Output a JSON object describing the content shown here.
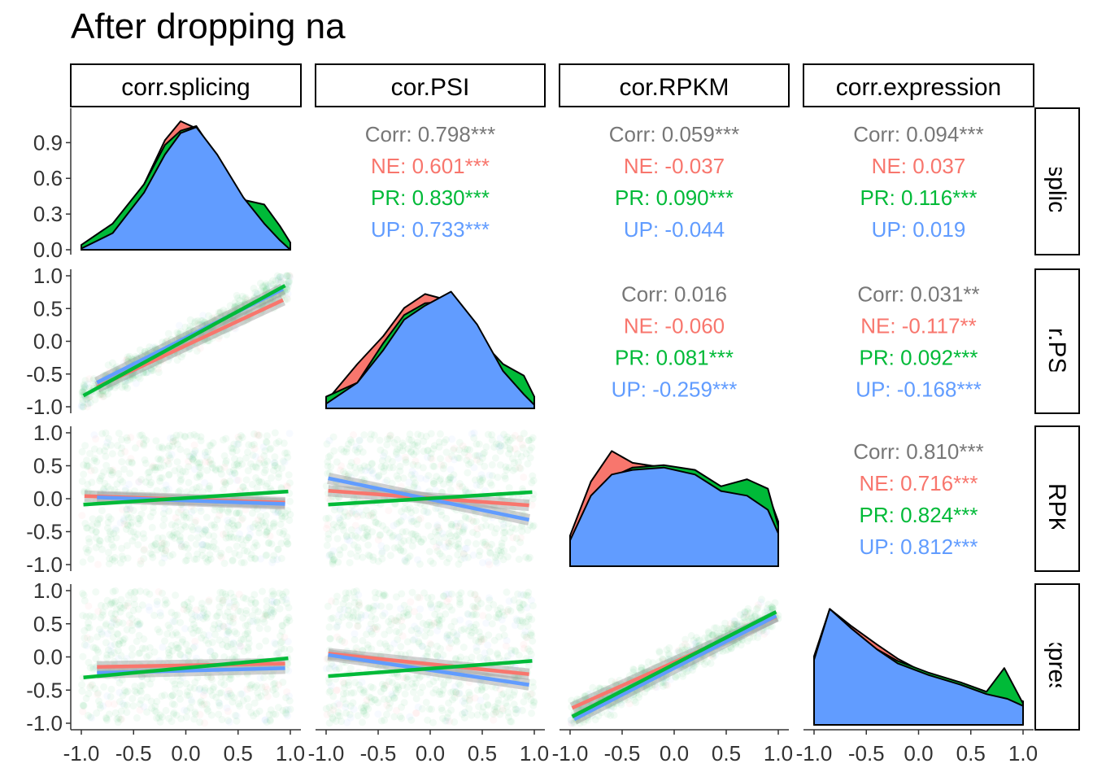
{
  "title": "After dropping na",
  "colors": {
    "NE": "#F8766D",
    "PR": "#00BA38",
    "UP": "#619CFF",
    "corr": "#777777"
  },
  "chart_data": {
    "type": "scatter",
    "chart_kind": "ggpairs scatterplot matrix",
    "variables": [
      "corr.splicing",
      "cor.PSI",
      "cor.RPKM",
      "corr.expression"
    ],
    "groups": [
      "NE",
      "PR",
      "UP"
    ],
    "axis": {
      "xlim": [
        -1.0,
        1.0
      ],
      "ylim": [
        -1.0,
        1.0
      ],
      "x_ticks": [
        "-1.0",
        "-0.5",
        "0.0",
        "0.5",
        "1.0"
      ],
      "y_ticks": [
        "-1.0",
        "-0.5",
        "0.0",
        "0.5",
        "1.0"
      ],
      "density_y_ticks": [
        "0.0",
        "0.3",
        "0.6",
        "0.9"
      ],
      "density_ylim": [
        0,
        1.08
      ],
      "grid": false
    },
    "correlations": [
      {
        "row": "corr.splicing",
        "col": "cor.PSI",
        "lines": [
          {
            "key": "Corr",
            "text": "Corr: 0.798***"
          },
          {
            "key": "NE",
            "text": "NE: 0.601***"
          },
          {
            "key": "PR",
            "text": "PR: 0.830***"
          },
          {
            "key": "UP",
            "text": "UP: 0.733***"
          }
        ]
      },
      {
        "row": "corr.splicing",
        "col": "cor.RPKM",
        "lines": [
          {
            "key": "Corr",
            "text": "Corr: 0.059***"
          },
          {
            "key": "NE",
            "text": "NE: -0.037"
          },
          {
            "key": "PR",
            "text": "PR: 0.090***"
          },
          {
            "key": "UP",
            "text": "UP: -0.044"
          }
        ]
      },
      {
        "row": "corr.splicing",
        "col": "corr.expression",
        "lines": [
          {
            "key": "Corr",
            "text": "Corr: 0.094***"
          },
          {
            "key": "NE",
            "text": "NE: 0.037"
          },
          {
            "key": "PR",
            "text": "PR: 0.116***"
          },
          {
            "key": "UP",
            "text": "UP: 0.019"
          }
        ]
      },
      {
        "row": "cor.PSI",
        "col": "cor.RPKM",
        "lines": [
          {
            "key": "Corr",
            "text": "Corr: 0.016"
          },
          {
            "key": "NE",
            "text": "NE: -0.060"
          },
          {
            "key": "PR",
            "text": "PR: 0.081***"
          },
          {
            "key": "UP",
            "text": "UP: -0.259***"
          }
        ]
      },
      {
        "row": "cor.PSI",
        "col": "corr.expression",
        "lines": [
          {
            "key": "Corr",
            "text": "Corr: 0.031**"
          },
          {
            "key": "NE",
            "text": "NE: -0.117**"
          },
          {
            "key": "PR",
            "text": "PR: 0.092***"
          },
          {
            "key": "UP",
            "text": "UP: -0.168***"
          }
        ]
      },
      {
        "row": "cor.RPKM",
        "col": "corr.expression",
        "lines": [
          {
            "key": "Corr",
            "text": "Corr: 0.810***"
          },
          {
            "key": "NE",
            "text": "NE: 0.716***"
          },
          {
            "key": "PR",
            "text": "PR: 0.824***"
          },
          {
            "key": "UP",
            "text": "UP: 0.812***"
          }
        ]
      }
    ],
    "regression_lines": [
      {
        "row": "cor.PSI",
        "col": "corr.splicing",
        "lines": [
          {
            "group": "NE",
            "x": [
              -0.85,
              0.93
            ],
            "y": [
              -0.7,
              0.63
            ]
          },
          {
            "group": "UP",
            "x": [
              -0.85,
              0.93
            ],
            "y": [
              -0.63,
              0.8
            ]
          },
          {
            "group": "PR",
            "x": [
              -0.98,
              0.95
            ],
            "y": [
              -0.83,
              0.85
            ]
          }
        ]
      },
      {
        "row": "cor.RPKM",
        "col": "corr.splicing",
        "lines": [
          {
            "group": "NE",
            "x": [
              -0.97,
              0.95
            ],
            "y": [
              0.04,
              -0.06
            ]
          },
          {
            "group": "UP",
            "x": [
              -0.85,
              0.95
            ],
            "y": [
              0.02,
              -0.08
            ]
          },
          {
            "group": "PR",
            "x": [
              -0.98,
              0.98
            ],
            "y": [
              -0.09,
              0.11
            ]
          }
        ]
      },
      {
        "row": "cor.RPKM",
        "col": "cor.PSI",
        "lines": [
          {
            "group": "NE",
            "x": [
              -0.98,
              0.95
            ],
            "y": [
              0.12,
              -0.1
            ]
          },
          {
            "group": "UP",
            "x": [
              -0.98,
              0.95
            ],
            "y": [
              0.31,
              -0.32
            ]
          },
          {
            "group": "PR",
            "x": [
              -0.98,
              0.98
            ],
            "y": [
              -0.09,
              0.1
            ]
          }
        ]
      },
      {
        "row": "corr.expression",
        "col": "corr.splicing",
        "lines": [
          {
            "group": "NE",
            "x": [
              -0.85,
              0.95
            ],
            "y": [
              -0.15,
              -0.1
            ]
          },
          {
            "group": "UP",
            "x": [
              -0.85,
              0.95
            ],
            "y": [
              -0.24,
              -0.17
            ]
          },
          {
            "group": "PR",
            "x": [
              -0.98,
              0.98
            ],
            "y": [
              -0.31,
              -0.02
            ]
          }
        ]
      },
      {
        "row": "corr.expression",
        "col": "cor.PSI",
        "lines": [
          {
            "group": "NE",
            "x": [
              -0.98,
              0.95
            ],
            "y": [
              0.05,
              -0.26
            ]
          },
          {
            "group": "UP",
            "x": [
              -0.98,
              0.95
            ],
            "y": [
              0.03,
              -0.42
            ]
          },
          {
            "group": "PR",
            "x": [
              -0.98,
              0.98
            ],
            "y": [
              -0.29,
              -0.06
            ]
          }
        ]
      },
      {
        "row": "corr.expression",
        "col": "cor.RPKM",
        "lines": [
          {
            "group": "NE",
            "x": [
              -0.98,
              0.98
            ],
            "y": [
              -0.77,
              0.61
            ]
          },
          {
            "group": "UP",
            "x": [
              -0.96,
              0.98
            ],
            "y": [
              -0.94,
              0.62
            ]
          },
          {
            "group": "PR",
            "x": [
              -0.98,
              0.98
            ],
            "y": [
              -0.9,
              0.68
            ]
          }
        ]
      }
    ],
    "densities": [
      {
        "variable": "corr.splicing",
        "NE": [
          [
            -1.0,
            0.02
          ],
          [
            -0.7,
            0.2
          ],
          [
            -0.4,
            0.55
          ],
          [
            -0.2,
            0.92
          ],
          [
            -0.05,
            1.08
          ],
          [
            0.1,
            1.02
          ],
          [
            0.3,
            0.76
          ],
          [
            0.55,
            0.4
          ],
          [
            0.75,
            0.28
          ],
          [
            0.9,
            0.15
          ],
          [
            1.0,
            0.02
          ]
        ],
        "PR": [
          [
            -1.0,
            0.04
          ],
          [
            -0.7,
            0.22
          ],
          [
            -0.4,
            0.55
          ],
          [
            -0.2,
            0.88
          ],
          [
            -0.05,
            1.0
          ],
          [
            0.1,
            1.04
          ],
          [
            0.3,
            0.78
          ],
          [
            0.55,
            0.42
          ],
          [
            0.75,
            0.38
          ],
          [
            0.9,
            0.2
          ],
          [
            1.0,
            0.06
          ]
        ],
        "UP": [
          [
            -1.0,
            0.01
          ],
          [
            -0.7,
            0.14
          ],
          [
            -0.4,
            0.48
          ],
          [
            -0.2,
            0.8
          ],
          [
            -0.05,
            0.98
          ],
          [
            0.1,
            1.03
          ],
          [
            0.3,
            0.8
          ],
          [
            0.55,
            0.44
          ],
          [
            0.75,
            0.22
          ],
          [
            0.9,
            0.08
          ],
          [
            1.0,
            0.0
          ]
        ]
      },
      {
        "variable": "cor.PSI",
        "NE": [
          [
            -1.0,
            0.06
          ],
          [
            -0.7,
            0.38
          ],
          [
            -0.45,
            0.62
          ],
          [
            -0.25,
            0.86
          ],
          [
            -0.05,
            0.98
          ],
          [
            0.2,
            0.92
          ],
          [
            0.45,
            0.6
          ],
          [
            0.7,
            0.32
          ],
          [
            0.9,
            0.1
          ],
          [
            1.0,
            0.03
          ]
        ],
        "PR": [
          [
            -1.0,
            0.1
          ],
          [
            -0.7,
            0.22
          ],
          [
            -0.45,
            0.56
          ],
          [
            -0.25,
            0.8
          ],
          [
            -0.05,
            0.9
          ],
          [
            0.2,
            0.92
          ],
          [
            0.45,
            0.62
          ],
          [
            0.7,
            0.38
          ],
          [
            0.9,
            0.28
          ],
          [
            1.0,
            0.1
          ]
        ],
        "UP": [
          [
            -1.0,
            0.04
          ],
          [
            -0.7,
            0.22
          ],
          [
            -0.45,
            0.5
          ],
          [
            -0.25,
            0.76
          ],
          [
            -0.05,
            0.88
          ],
          [
            0.2,
            1.0
          ],
          [
            0.45,
            0.72
          ],
          [
            0.7,
            0.32
          ],
          [
            0.9,
            0.12
          ],
          [
            1.0,
            0.03
          ]
        ]
      },
      {
        "variable": "cor.RPKM",
        "NE": [
          [
            -1.0,
            0.26
          ],
          [
            -0.8,
            0.72
          ],
          [
            -0.6,
            0.98
          ],
          [
            -0.4,
            0.88
          ],
          [
            -0.1,
            0.84
          ],
          [
            0.2,
            0.8
          ],
          [
            0.45,
            0.68
          ],
          [
            0.7,
            0.72
          ],
          [
            0.9,
            0.62
          ],
          [
            1.0,
            0.38
          ]
        ],
        "PR": [
          [
            -1.0,
            0.2
          ],
          [
            -0.8,
            0.58
          ],
          [
            -0.6,
            0.76
          ],
          [
            -0.4,
            0.84
          ],
          [
            -0.1,
            0.86
          ],
          [
            0.2,
            0.82
          ],
          [
            0.45,
            0.68
          ],
          [
            0.7,
            0.74
          ],
          [
            0.9,
            0.66
          ],
          [
            1.0,
            0.34
          ]
        ],
        "UP": [
          [
            -1.0,
            0.22
          ],
          [
            -0.8,
            0.6
          ],
          [
            -0.6,
            0.78
          ],
          [
            -0.4,
            0.82
          ],
          [
            -0.1,
            0.84
          ],
          [
            0.2,
            0.78
          ],
          [
            0.45,
            0.64
          ],
          [
            0.7,
            0.6
          ],
          [
            0.9,
            0.48
          ],
          [
            1.0,
            0.28
          ]
        ]
      },
      {
        "variable": "corr.expression",
        "NE": [
          [
            -1.0,
            0.55
          ],
          [
            -0.85,
            0.98
          ],
          [
            -0.65,
            0.84
          ],
          [
            -0.4,
            0.68
          ],
          [
            -0.2,
            0.56
          ],
          [
            0.1,
            0.42
          ],
          [
            0.4,
            0.36
          ],
          [
            0.65,
            0.28
          ],
          [
            0.85,
            0.24
          ],
          [
            1.0,
            0.2
          ]
        ],
        "PR": [
          [
            -1.0,
            0.58
          ],
          [
            -0.85,
            0.98
          ],
          [
            -0.65,
            0.82
          ],
          [
            -0.4,
            0.64
          ],
          [
            -0.2,
            0.54
          ],
          [
            0.1,
            0.44
          ],
          [
            0.4,
            0.36
          ],
          [
            0.65,
            0.28
          ],
          [
            0.82,
            0.48
          ],
          [
            1.0,
            0.18
          ]
        ],
        "UP": [
          [
            -1.0,
            0.55
          ],
          [
            -0.85,
            0.98
          ],
          [
            -0.65,
            0.82
          ],
          [
            -0.4,
            0.64
          ],
          [
            -0.2,
            0.52
          ],
          [
            0.1,
            0.42
          ],
          [
            0.4,
            0.34
          ],
          [
            0.65,
            0.26
          ],
          [
            0.85,
            0.22
          ],
          [
            1.0,
            0.16
          ]
        ]
      }
    ]
  }
}
